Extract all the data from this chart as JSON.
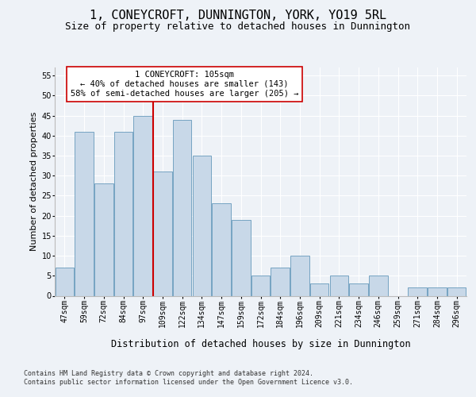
{
  "title": "1, CONEYCROFT, DUNNINGTON, YORK, YO19 5RL",
  "subtitle": "Size of property relative to detached houses in Dunnington",
  "xlabel": "Distribution of detached houses by size in Dunnington",
  "ylabel": "Number of detached properties",
  "categories": [
    "47sqm",
    "59sqm",
    "72sqm",
    "84sqm",
    "97sqm",
    "109sqm",
    "122sqm",
    "134sqm",
    "147sqm",
    "159sqm",
    "172sqm",
    "184sqm",
    "196sqm",
    "209sqm",
    "221sqm",
    "234sqm",
    "246sqm",
    "259sqm",
    "271sqm",
    "284sqm",
    "296sqm"
  ],
  "values": [
    7,
    41,
    28,
    41,
    45,
    31,
    44,
    35,
    23,
    19,
    5,
    7,
    10,
    3,
    5,
    3,
    5,
    0,
    2,
    2,
    2
  ],
  "bar_color": "#c8d8e8",
  "bar_edge_color": "#6699bb",
  "vline_x_index": 4.5,
  "vline_color": "#cc0000",
  "annotation_text": "1 CONEYCROFT: 105sqm\n← 40% of detached houses are smaller (143)\n58% of semi-detached houses are larger (205) →",
  "annotation_box_color": "#ffffff",
  "annotation_box_edge": "#cc0000",
  "ylim": [
    0,
    57
  ],
  "yticks": [
    0,
    5,
    10,
    15,
    20,
    25,
    30,
    35,
    40,
    45,
    50,
    55
  ],
  "title_fontsize": 11,
  "subtitle_fontsize": 9,
  "xlabel_fontsize": 8.5,
  "ylabel_fontsize": 8,
  "tick_fontsize": 7,
  "annotation_fontsize": 7.5,
  "footer1": "Contains HM Land Registry data © Crown copyright and database right 2024.",
  "footer2": "Contains public sector information licensed under the Open Government Licence v3.0.",
  "bg_color": "#eef2f7",
  "plot_bg_color": "#eef2f7",
  "grid_color": "#ffffff"
}
